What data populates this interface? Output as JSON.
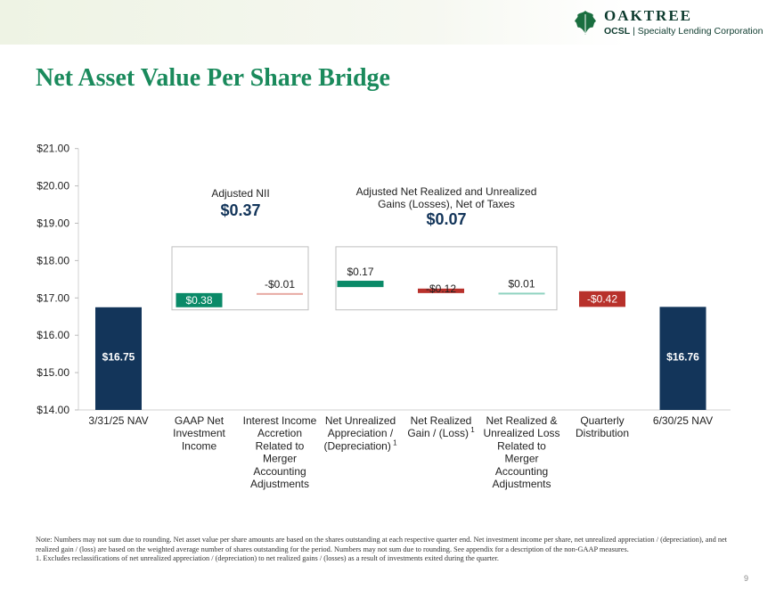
{
  "brand": {
    "name": "OAKTREE",
    "sub_bold": "OCSL",
    "sub_rest": "| Specialty Lending Corporation",
    "colors": {
      "green": "#1a8a5c",
      "navy": "#13355a",
      "red": "#b8312b",
      "teal": "#0a8a68"
    }
  },
  "page": {
    "title": "Net Asset Value Per Share Bridge",
    "number": "9"
  },
  "chart_data": {
    "type": "bar",
    "subtype": "waterfall",
    "ylim": [
      14,
      21
    ],
    "yticks": [
      "$14.00",
      "$15.00",
      "$16.00",
      "$17.00",
      "$18.00",
      "$19.00",
      "$20.00",
      "$21.00"
    ],
    "categories": [
      "3/31/25 NAV",
      "GAAP Net Investment Income",
      "Interest Income Accretion Related to Merger Accounting Adjustments",
      "Net Unrealized Appreciation / (Depreciation)",
      "Net Realized Gain / (Loss)",
      "Net Realized & Unrealized Loss Related to Merger Accounting Adjustments",
      "Quarterly Distribution",
      "6/30/25 NAV"
    ],
    "category_lines": [
      [
        "3/31/25 NAV"
      ],
      [
        "GAAP Net",
        "Investment",
        "Income"
      ],
      [
        "Interest Income",
        "Accretion",
        "Related to",
        "Merger",
        "Accounting",
        "Adjustments"
      ],
      [
        "Net Unrealized",
        "Appreciation /",
        "(Depreciation)"
      ],
      [
        "Net Realized",
        "Gain / (Loss)"
      ],
      [
        "Net Realized &",
        "Unrealized Loss",
        "Related to",
        "Merger",
        "Accounting",
        "Adjustments"
      ],
      [
        "Quarterly",
        "Distribution"
      ],
      [
        "6/30/25 NAV"
      ]
    ],
    "footnote_marker": "1",
    "footnoted": [
      3,
      4
    ],
    "bars": [
      {
        "kind": "total",
        "start": 14,
        "end": 16.75,
        "label": "$16.75",
        "color": "#13355a"
      },
      {
        "kind": "delta",
        "start": 16.75,
        "end": 17.13,
        "label": "$0.38",
        "color": "#0a8a68"
      },
      {
        "kind": "delta",
        "start": 17.13,
        "end": 17.12,
        "label": "-$0.01",
        "color": "#e7a9a2"
      },
      {
        "kind": "delta",
        "start": 17.29,
        "end": 17.46,
        "label": "$0.17",
        "color": "#0a8a68"
      },
      {
        "kind": "delta",
        "start": 17.25,
        "end": 17.13,
        "label": "-$0.12",
        "color": "#b8312b"
      },
      {
        "kind": "delta",
        "start": 17.13,
        "end": 17.14,
        "label": "$0.01",
        "color": "#8fd2c0"
      },
      {
        "kind": "delta",
        "start": 17.18,
        "end": 16.76,
        "label": "-$0.42",
        "color": "#b8312b"
      },
      {
        "kind": "total",
        "start": 14,
        "end": 16.76,
        "label": "$16.76",
        "color": "#13355a"
      }
    ],
    "annotations": [
      {
        "title": "Adjusted NII",
        "value": "$0.37"
      },
      {
        "title_lines": [
          "Adjusted Net Realized and Unrealized",
          "Gains (Losses), Net of Taxes"
        ],
        "value": "$0.07"
      }
    ]
  },
  "footnotes": {
    "note": "Note: Numbers may not sum due to rounding. Net asset value per share amounts are based on the shares outstanding at each respective quarter end. Net investment income per share, net unrealized appreciation / (depreciation), and net realized gain / (loss) are based on the weighted average number of shares outstanding for the period. Numbers may not sum due to rounding. See appendix for a description of the non-GAAP measures.",
    "item1": "1.   Excludes reclassifications of net unrealized appreciation / (depreciation) to net realized gains / (losses) as a result of investments exited during the quarter."
  }
}
